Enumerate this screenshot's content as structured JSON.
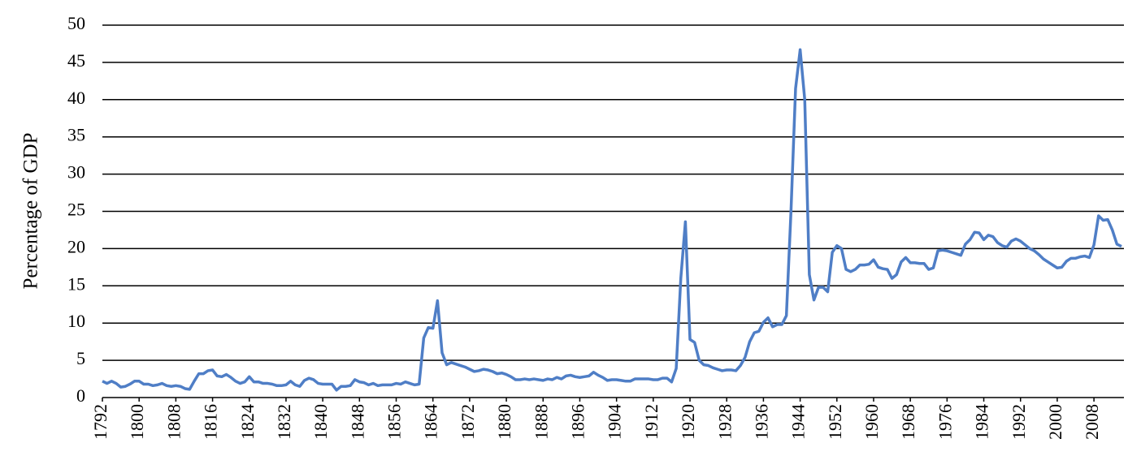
{
  "chart_data": {
    "type": "line",
    "ylabel": "Percentage of GDP",
    "color": "#4f7ec6",
    "grid": true,
    "xlim": [
      1792,
      2014
    ],
    "ylim": [
      0,
      50
    ],
    "yticks": [
      0,
      5,
      10,
      15,
      20,
      25,
      30,
      35,
      40,
      45,
      50
    ],
    "xticks": [
      1792,
      1800,
      1808,
      1816,
      1824,
      1832,
      1840,
      1848,
      1856,
      1864,
      1872,
      1880,
      1888,
      1896,
      1904,
      1912,
      1920,
      1928,
      1936,
      1944,
      1952,
      1960,
      1968,
      1976,
      1984,
      1992,
      2000,
      2008
    ],
    "x": [
      1792,
      1793,
      1794,
      1795,
      1796,
      1797,
      1798,
      1799,
      1800,
      1801,
      1802,
      1803,
      1804,
      1805,
      1806,
      1807,
      1808,
      1809,
      1810,
      1811,
      1812,
      1813,
      1814,
      1815,
      1816,
      1817,
      1818,
      1819,
      1820,
      1821,
      1822,
      1823,
      1824,
      1825,
      1826,
      1827,
      1828,
      1829,
      1830,
      1831,
      1832,
      1833,
      1834,
      1835,
      1836,
      1837,
      1838,
      1839,
      1840,
      1841,
      1842,
      1843,
      1844,
      1845,
      1846,
      1847,
      1848,
      1849,
      1850,
      1851,
      1852,
      1853,
      1854,
      1855,
      1856,
      1857,
      1858,
      1859,
      1860,
      1861,
      1862,
      1863,
      1864,
      1865,
      1866,
      1867,
      1868,
      1869,
      1870,
      1871,
      1872,
      1873,
      1874,
      1875,
      1876,
      1877,
      1878,
      1879,
      1880,
      1881,
      1882,
      1883,
      1884,
      1885,
      1886,
      1887,
      1888,
      1889,
      1890,
      1891,
      1892,
      1893,
      1894,
      1895,
      1896,
      1897,
      1898,
      1899,
      1900,
      1901,
      1902,
      1903,
      1904,
      1905,
      1906,
      1907,
      1908,
      1909,
      1910,
      1911,
      1912,
      1913,
      1914,
      1915,
      1916,
      1917,
      1918,
      1919,
      1920,
      1921,
      1922,
      1923,
      1924,
      1925,
      1926,
      1927,
      1928,
      1929,
      1930,
      1931,
      1932,
      1933,
      1934,
      1935,
      1936,
      1937,
      1938,
      1939,
      1940,
      1941,
      1942,
      1943,
      1944,
      1945,
      1946,
      1947,
      1948,
      1949,
      1950,
      1951,
      1952,
      1953,
      1954,
      1955,
      1956,
      1957,
      1958,
      1959,
      1960,
      1961,
      1962,
      1963,
      1964,
      1965,
      1966,
      1967,
      1968,
      1969,
      1970,
      1971,
      1972,
      1973,
      1974,
      1975,
      1976,
      1977,
      1978,
      1979,
      1980,
      1981,
      1982,
      1983,
      1984,
      1985,
      1986,
      1987,
      1988,
      1989,
      1990,
      1991,
      1992,
      1993,
      1994,
      1995,
      1996,
      1997,
      1998,
      1999,
      2000,
      2001,
      2002,
      2003,
      2004,
      2005,
      2006,
      2007,
      2008,
      2009,
      2010,
      2011,
      2012,
      2013,
      2014
    ],
    "values": [
      2.2,
      1.9,
      2.2,
      1.9,
      1.4,
      1.5,
      1.8,
      2.2,
      2.2,
      1.8,
      1.8,
      1.6,
      1.7,
      1.9,
      1.6,
      1.5,
      1.6,
      1.5,
      1.2,
      1.1,
      2.2,
      3.2,
      3.2,
      3.6,
      3.7,
      2.9,
      2.8,
      3.1,
      2.7,
      2.2,
      1.9,
      2.1,
      2.8,
      2.1,
      2.1,
      1.9,
      1.9,
      1.8,
      1.6,
      1.6,
      1.7,
      2.2,
      1.7,
      1.5,
      2.3,
      2.6,
      2.4,
      1.9,
      1.8,
      1.8,
      1.8,
      1.0,
      1.5,
      1.5,
      1.6,
      2.4,
      2.1,
      2.0,
      1.7,
      1.9,
      1.6,
      1.7,
      1.7,
      1.7,
      1.9,
      1.8,
      2.1,
      1.9,
      1.7,
      1.8,
      8.0,
      9.4,
      9.3,
      13.0,
      6.0,
      4.4,
      4.7,
      4.5,
      4.3,
      4.1,
      3.8,
      3.5,
      3.6,
      3.8,
      3.7,
      3.5,
      3.2,
      3.3,
      3.1,
      2.8,
      2.4,
      2.4,
      2.5,
      2.4,
      2.5,
      2.4,
      2.3,
      2.5,
      2.4,
      2.7,
      2.5,
      2.9,
      3.0,
      2.8,
      2.7,
      2.8,
      2.9,
      3.4,
      3.0,
      2.7,
      2.3,
      2.4,
      2.4,
      2.3,
      2.2,
      2.2,
      2.5,
      2.5,
      2.5,
      2.5,
      2.4,
      2.4,
      2.6,
      2.6,
      2.1,
      3.9,
      16.0,
      23.6,
      7.8,
      7.4,
      5.0,
      4.4,
      4.3,
      4.0,
      3.8,
      3.6,
      3.7,
      3.7,
      3.6,
      4.3,
      5.4,
      7.5,
      8.7,
      8.9,
      10.1,
      10.7,
      9.5,
      9.8,
      9.8,
      11.0,
      25.0,
      41.5,
      46.7,
      40.0,
      16.5,
      13.1,
      14.8,
      14.8,
      14.2,
      19.5,
      20.4,
      20.0,
      17.2,
      16.9,
      17.2,
      17.8,
      17.8,
      17.9,
      18.5,
      17.5,
      17.3,
      17.2,
      16.0,
      16.5,
      18.2,
      18.8,
      18.1,
      18.1,
      18.0,
      18.0,
      17.2,
      17.4,
      19.7,
      19.8,
      19.7,
      19.5,
      19.3,
      19.1,
      20.6,
      21.2,
      22.2,
      22.1,
      21.2,
      21.8,
      21.6,
      20.8,
      20.4,
      20.2,
      21.0,
      21.3,
      21.0,
      20.5,
      20.0,
      19.7,
      19.2,
      18.6,
      18.2,
      17.8,
      17.4,
      17.5,
      18.3,
      18.7,
      18.7,
      18.9,
      19.0,
      18.8,
      20.5,
      24.4,
      23.8,
      23.9,
      22.5,
      20.6,
      20.3
    ]
  }
}
